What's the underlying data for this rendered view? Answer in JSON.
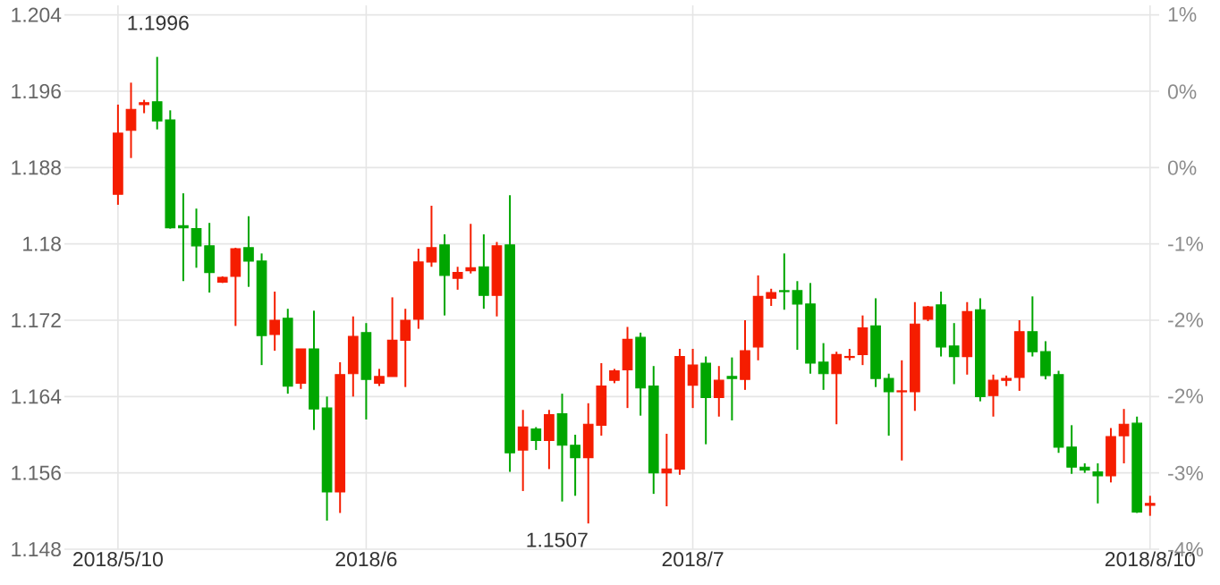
{
  "chart_data": {
    "type": "candlestick",
    "categories": [
      "2018/5/10",
      null,
      null,
      null,
      null,
      null,
      null,
      null,
      null,
      null,
      null,
      null,
      null,
      null,
      null,
      null,
      null,
      null,
      null,
      "2018/6",
      null,
      null,
      null,
      null,
      null,
      null,
      null,
      null,
      null,
      null,
      null,
      null,
      null,
      null,
      null,
      null,
      null,
      null,
      null,
      null,
      null,
      null,
      null,
      null,
      "2018/7",
      null,
      null,
      null,
      null,
      null,
      null,
      null,
      null,
      null,
      null,
      null,
      null,
      null,
      null,
      null,
      null,
      null,
      null,
      null,
      null,
      null,
      null,
      null,
      null,
      null,
      null,
      null,
      null,
      null,
      null,
      null,
      null,
      null,
      null,
      "2018/8/10"
    ],
    "ohlc": [
      [
        1.1852,
        1.1946,
        1.1841,
        1.1916
      ],
      [
        1.1919,
        1.1969,
        1.189,
        1.1941
      ],
      [
        1.1946,
        1.1951,
        1.1937,
        1.1948
      ],
      [
        1.1949,
        1.1996,
        1.192,
        1.1929
      ],
      [
        1.193,
        1.194,
        1.1816,
        1.1817
      ],
      [
        1.1819,
        1.1853,
        1.1761,
        1.1817
      ],
      [
        1.1816,
        1.1837,
        1.1775,
        1.1798
      ],
      [
        1.1798,
        1.1822,
        1.1749,
        1.177
      ],
      [
        1.176,
        1.1766,
        1.1759,
        1.1765
      ],
      [
        1.1766,
        1.1796,
        1.1714,
        1.1795
      ],
      [
        1.1796,
        1.1829,
        1.1755,
        1.1782
      ],
      [
        1.1782,
        1.179,
        1.1673,
        1.1704
      ],
      [
        1.1705,
        1.175,
        1.1688,
        1.172
      ],
      [
        1.1722,
        1.1732,
        1.1643,
        1.1651
      ],
      [
        1.1654,
        1.169,
        1.1648,
        1.169
      ],
      [
        1.169,
        1.173,
        1.1605,
        1.1627
      ],
      [
        1.1628,
        1.164,
        1.151,
        1.154
      ],
      [
        1.154,
        1.1676,
        1.1518,
        1.1663
      ],
      [
        1.1664,
        1.1724,
        1.164,
        1.1703
      ],
      [
        1.1707,
        1.1717,
        1.1616,
        1.1658
      ],
      [
        1.1654,
        1.1669,
        1.1651,
        1.1661
      ],
      [
        1.1661,
        1.1744,
        1.1661,
        1.1699
      ],
      [
        1.1699,
        1.1732,
        1.165,
        1.172
      ],
      [
        1.1721,
        1.1795,
        1.1711,
        1.1781
      ],
      [
        1.1781,
        1.184,
        1.1776,
        1.1796
      ],
      [
        1.1799,
        1.181,
        1.1725,
        1.1767
      ],
      [
        1.1764,
        1.1776,
        1.1752,
        1.177
      ],
      [
        1.1772,
        1.1821,
        1.1769,
        1.1775
      ],
      [
        1.1776,
        1.181,
        1.1732,
        1.1746
      ],
      [
        1.1746,
        1.1802,
        1.1724,
        1.1798
      ],
      [
        1.1799,
        1.1851,
        1.1561,
        1.1581
      ],
      [
        1.1584,
        1.1626,
        1.1541,
        1.1608
      ],
      [
        1.1606,
        1.1608,
        1.1584,
        1.1594
      ],
      [
        1.1594,
        1.1626,
        1.1564,
        1.1621
      ],
      [
        1.1622,
        1.1643,
        1.153,
        1.1589
      ],
      [
        1.1589,
        1.16,
        1.1536,
        1.1576
      ],
      [
        1.1576,
        1.1633,
        1.1507,
        1.1611
      ],
      [
        1.161,
        1.1675,
        1.1599,
        1.1651
      ],
      [
        1.1657,
        1.1669,
        1.1654,
        1.1667
      ],
      [
        1.1668,
        1.1713,
        1.1628,
        1.17
      ],
      [
        1.1702,
        1.1707,
        1.162,
        1.1649
      ],
      [
        1.1651,
        1.1672,
        1.1538,
        1.156
      ],
      [
        1.156,
        1.1601,
        1.1525,
        1.1564
      ],
      [
        1.1564,
        1.169,
        1.1558,
        1.1682
      ],
      [
        1.1652,
        1.169,
        1.1628,
        1.1673
      ],
      [
        1.1675,
        1.1682,
        1.159,
        1.1639
      ],
      [
        1.1639,
        1.1672,
        1.1619,
        1.1657
      ],
      [
        1.1661,
        1.1681,
        1.1615,
        1.1659
      ],
      [
        1.1658,
        1.172,
        1.1647,
        1.1688
      ],
      [
        1.1692,
        1.1767,
        1.1678,
        1.1745
      ],
      [
        1.1743,
        1.1753,
        1.1735,
        1.1749
      ],
      [
        1.1751,
        1.179,
        1.1731,
        1.175
      ],
      [
        1.1751,
        1.1761,
        1.1689,
        1.1737
      ],
      [
        1.1737,
        1.1759,
        1.1664,
        1.1675
      ],
      [
        1.1676,
        1.1696,
        1.1647,
        1.1664
      ],
      [
        1.1664,
        1.1687,
        1.1611,
        1.1684
      ],
      [
        1.1681,
        1.169,
        1.1678,
        1.1682
      ],
      [
        1.1684,
        1.1725,
        1.1673,
        1.1712
      ],
      [
        1.1714,
        1.1743,
        1.165,
        1.1659
      ],
      [
        1.1659,
        1.1664,
        1.1599,
        1.1645
      ],
      [
        1.1645,
        1.1678,
        1.1573,
        1.1646
      ],
      [
        1.1645,
        1.1739,
        1.1625,
        1.1716
      ],
      [
        1.1721,
        1.1735,
        1.1719,
        1.1734
      ],
      [
        1.1736,
        1.175,
        1.1682,
        1.1692
      ],
      [
        1.1693,
        1.1717,
        1.1653,
        1.1682
      ],
      [
        1.1682,
        1.1739,
        1.1663,
        1.1729
      ],
      [
        1.1731,
        1.1743,
        1.1635,
        1.164
      ],
      [
        1.1641,
        1.1663,
        1.1619,
        1.1657
      ],
      [
        1.1657,
        1.1662,
        1.1651,
        1.1659
      ],
      [
        1.166,
        1.172,
        1.1646,
        1.1708
      ],
      [
        1.1708,
        1.1745,
        1.1682,
        1.1687
      ],
      [
        1.1687,
        1.1698,
        1.1658,
        1.1662
      ],
      [
        1.1663,
        1.1667,
        1.1581,
        1.1587
      ],
      [
        1.1587,
        1.161,
        1.1559,
        1.1566
      ],
      [
        1.1566,
        1.157,
        1.156,
        1.1563
      ],
      [
        1.1561,
        1.157,
        1.1528,
        1.1557
      ],
      [
        1.1557,
        1.1607,
        1.155,
        1.1598
      ],
      [
        1.1599,
        1.1627,
        1.157,
        1.1611
      ],
      [
        1.1612,
        1.1619,
        1.1518,
        1.1519
      ],
      [
        1.1526,
        1.1536,
        1.1515,
        1.1528
      ]
    ],
    "colors": [
      "#f51d00",
      "#f51d00",
      "#f51d00",
      "#00a600",
      "#00a600",
      "#00a600",
      "#00a600",
      "#00a600",
      "#f51d00",
      "#f51d00",
      "#00a600",
      "#00a600",
      "#f51d00",
      "#00a600",
      "#f51d00",
      "#00a600",
      "#00a600",
      "#f51d00",
      "#f51d00",
      "#00a600",
      "#f51d00",
      "#f51d00",
      "#f51d00",
      "#f51d00",
      "#f51d00",
      "#00a600",
      "#f51d00",
      "#f51d00",
      "#00a600",
      "#f51d00",
      "#00a600",
      "#f51d00",
      "#00a600",
      "#f51d00",
      "#00a600",
      "#00a600",
      "#f51d00",
      "#f51d00",
      "#f51d00",
      "#f51d00",
      "#00a600",
      "#00a600",
      "#f51d00",
      "#f51d00",
      "#f51d00",
      "#00a600",
      "#f51d00",
      "#00a600",
      "#f51d00",
      "#f51d00",
      "#f51d00",
      "#00a600",
      "#00a600",
      "#00a600",
      "#00a600",
      "#f51d00",
      "#f51d00",
      "#f51d00",
      "#00a600",
      "#00a600",
      "#f51d00",
      "#f51d00",
      "#f51d00",
      "#00a600",
      "#00a600",
      "#f51d00",
      "#00a600",
      "#f51d00",
      "#f51d00",
      "#f51d00",
      "#00a600",
      "#00a600",
      "#00a600",
      "#00a600",
      "#00a600",
      "#00a600",
      "#f51d00",
      "#f51d00",
      "#00a600",
      "#f51d00"
    ],
    "ylim": [
      1.148,
      1.205
    ],
    "yticks": [
      1.148,
      1.156,
      1.164,
      1.172,
      1.18,
      1.188,
      1.196,
      1.204
    ],
    "y2lim": [
      -3.53,
      1.26
    ],
    "y2ticks": [
      {
        "value": -3.53,
        "label": "-4%"
      },
      {
        "value": -2.86,
        "label": "-3%"
      },
      {
        "value": -2.18,
        "label": "-2%"
      },
      {
        "value": -1.51,
        "label": "-2%"
      },
      {
        "value": -0.84,
        "label": "-1%"
      },
      {
        "value": -0.17,
        "label": "0%"
      },
      {
        "value": 0.5,
        "label": "0%"
      },
      {
        "value": 1.18,
        "label": "1%"
      }
    ],
    "annotations": [
      "1.1996",
      "1.1507"
    ],
    "grid": true
  }
}
